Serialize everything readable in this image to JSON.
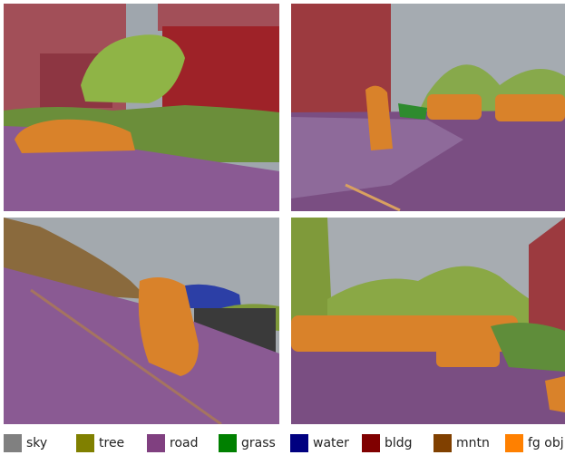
{
  "legend": {
    "items": [
      {
        "label": "sky",
        "color": "#808080"
      },
      {
        "label": "tree",
        "color": "#808000"
      },
      {
        "label": "road",
        "color": "#804080"
      },
      {
        "label": "grass",
        "color": "#008000"
      },
      {
        "label": "water",
        "color": "#000080"
      },
      {
        "label": "bldg",
        "color": "#800000"
      },
      {
        "label": "mntn",
        "color": "#804000"
      },
      {
        "label": "fg obj.",
        "color": "#ff8000"
      }
    ]
  },
  "panels": [
    {
      "name": "top-left",
      "content": "urban street with parked car, buildings, trees, grass"
    },
    {
      "name": "top-right",
      "content": "city intersection with pedestrians, cars, buildings"
    },
    {
      "name": "bottom-left",
      "content": "coastal road with cyclist, hillside, water"
    },
    {
      "name": "bottom-right",
      "content": "tree-lined street with many cars, building on right"
    }
  ]
}
